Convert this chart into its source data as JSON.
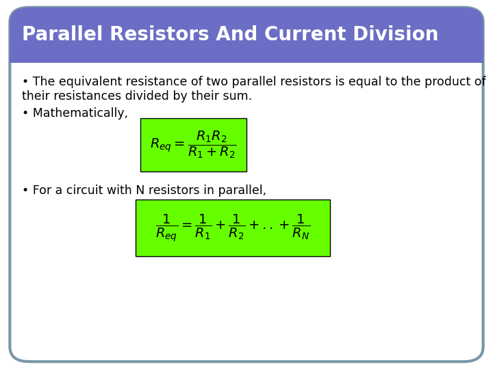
{
  "title": "Parallel Resistors And Current Division",
  "title_bg_color": "#6B6EC4",
  "title_text_color": "#FFFFFF",
  "body_bg_color": "#FFFFFF",
  "outer_bg_color": "#FFFFFF",
  "border_color": "#7A97A8",
  "text1_line1": "• The equivalent resistance of two parallel resistors is equal to the product of",
  "text1_line2": "their resistances divided by their sum.",
  "text2": "• Mathematically,",
  "text3": "• For a circuit with N resistors in parallel,",
  "formula1": "$R_{eq} = \\dfrac{R_1 R_2}{R_1 + R_2}$",
  "formula2": "$\\dfrac{1}{R_{eq}} = \\dfrac{1}{R_1} + \\dfrac{1}{R_2} + ..+\\dfrac{1}{R_N}$",
  "formula_bg_color": "#66FF00",
  "text_fontsize": 12.5,
  "formula_fontsize": 14,
  "title_fontsize": 20,
  "fig_width": 7.2,
  "fig_height": 5.4,
  "dpi": 100
}
